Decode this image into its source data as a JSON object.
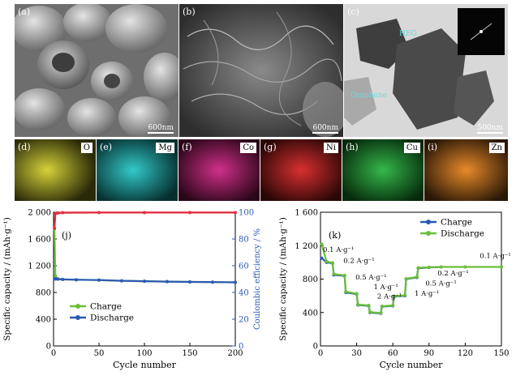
{
  "sem_panels": [
    {
      "label": "(a)",
      "scale": "600nm"
    },
    {
      "label": "(b)",
      "scale": "600nm"
    },
    {
      "label": "(c)",
      "scale": "500nm",
      "annot_heo": "HEO",
      "annot_graphene": "Graphene"
    }
  ],
  "maps": [
    {
      "label": "(d)",
      "element": "O",
      "color": "#d6d23a"
    },
    {
      "label": "(e)",
      "element": "Mg",
      "color": "#33c9c9"
    },
    {
      "label": "(f)",
      "element": "Co",
      "color": "#d0308a"
    },
    {
      "label": "(g)",
      "element": "Ni",
      "color": "#d83030"
    },
    {
      "label": "(h)",
      "element": "Cu",
      "color": "#35b84a"
    },
    {
      "label": "(i)",
      "element": "Zn",
      "color": "#e88a2a"
    }
  ],
  "chart_data": [
    {
      "type": "line",
      "panel_label": "(j)",
      "xlabel": "Cycle number",
      "ylabel": "Specific capacity / (mAh·g⁻¹)",
      "y2label": "Coulombic efficiency / %",
      "xlim": [
        0,
        200
      ],
      "ylim": [
        0,
        2000
      ],
      "y2lim": [
        0,
        100
      ],
      "x_ticks": [
        "0",
        "50",
        "100",
        "150",
        "200"
      ],
      "y_ticks": [
        "0",
        "400",
        "800",
        "1 200",
        "1 600",
        "2 000"
      ],
      "y2_ticks": [
        "0",
        "20",
        "40",
        "60",
        "80",
        "100"
      ],
      "legend": [
        "Charge",
        "Discharge"
      ],
      "legend_position": "bottom-left",
      "series": [
        {
          "name": "Charge",
          "color": "#6abf3a",
          "x": [
            1,
            2,
            3,
            5,
            10,
            25,
            50,
            75,
            100,
            125,
            150,
            175,
            200
          ],
          "values": [
            1750,
            1050,
            1010,
            1000,
            995,
            990,
            985,
            975,
            968,
            962,
            958,
            955,
            952
          ]
        },
        {
          "name": "Discharge",
          "color": "#2b59b4",
          "x": [
            1,
            2,
            3,
            5,
            10,
            25,
            50,
            75,
            100,
            125,
            150,
            175,
            200
          ],
          "values": [
            1000,
            1005,
            1003,
            1000,
            995,
            990,
            985,
            975,
            968,
            962,
            958,
            955,
            952
          ]
        },
        {
          "name": "Coulombic efficiency",
          "color": "#e03040",
          "axis": "y2",
          "x": [
            1,
            2,
            5,
            10,
            50,
            100,
            150,
            200
          ],
          "values": [
            88,
            99,
            99.5,
            99.7,
            99.8,
            99.8,
            99.8,
            99.8
          ]
        }
      ]
    },
    {
      "type": "line",
      "panel_label": "(k)",
      "xlabel": "Cycle number",
      "ylabel": "Specific capacity / (mAh·g⁻¹)",
      "xlim": [
        0,
        150
      ],
      "ylim": [
        0,
        1600
      ],
      "x_ticks": [
        "0",
        "30",
        "60",
        "90",
        "120",
        "150"
      ],
      "y_ticks": [
        "0",
        "400",
        "800",
        "1 200",
        "1 600"
      ],
      "legend": [
        "Charge",
        "Discharge"
      ],
      "legend_position": "top-right",
      "rate_labels": [
        "0.1 A·g⁻¹",
        "0.2 A·g⁻¹",
        "0.5 A·g⁻¹",
        "1 A·g⁻¹",
        "2 A·g⁻¹",
        "1 A·g⁻¹",
        "0.5 A·g⁻¹",
        "0.2 A·g⁻¹",
        "0.1 A·g⁻¹"
      ],
      "series": [
        {
          "name": "Charge",
          "color": "#2b59b4",
          "x": [
            1,
            5,
            10,
            11,
            20,
            21,
            30,
            31,
            40,
            41,
            50,
            51,
            60,
            61,
            70,
            71,
            80,
            81,
            90,
            100
          ],
          "values": [
            1050,
            1000,
            990,
            850,
            840,
            640,
            620,
            490,
            480,
            400,
            390,
            470,
            480,
            590,
            600,
            800,
            820,
            930,
            940,
            945
          ]
        },
        {
          "name": "Discharge",
          "color": "#6abf3a",
          "x": [
            1,
            5,
            10,
            11,
            20,
            21,
            30,
            31,
            40,
            41,
            50,
            51,
            60,
            61,
            70,
            71,
            80,
            81,
            90,
            100,
            120,
            150
          ],
          "values": [
            1220,
            1010,
            995,
            860,
            845,
            650,
            625,
            495,
            485,
            405,
            395,
            475,
            485,
            595,
            605,
            805,
            825,
            935,
            942,
            945,
            945,
            945
          ]
        }
      ]
    }
  ]
}
